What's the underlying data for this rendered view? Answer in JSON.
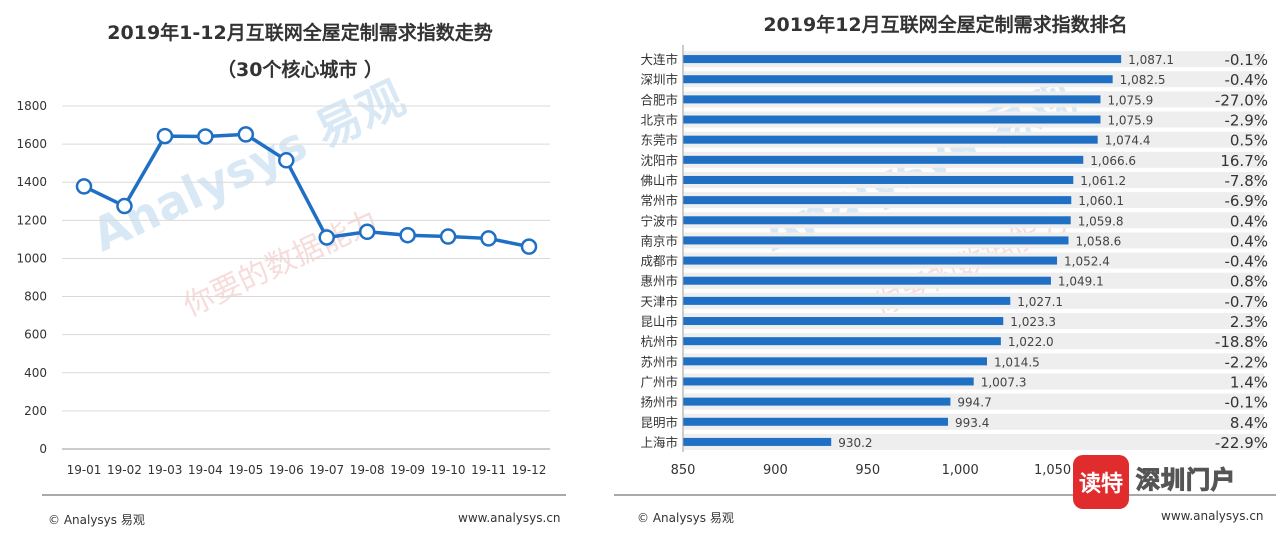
{
  "left": {
    "title_line1": "2019年1-12月互联网全屋定制需求指数走势",
    "title_line2": "（30个核心城市 ）",
    "footer_left": "© Analysys 易观",
    "footer_right": "www.analysys.cn",
    "watermark_main": "Analysys 易观",
    "watermark_sub": "你要的数据能力"
  },
  "right": {
    "title": "2019年12月互联网全屋定制需求指数排名",
    "footer_left": "© Analysys 易观",
    "footer_right": "www.analysys.cn",
    "watermark_main": "Analysys 易观",
    "watermark_sub": "你要的数据能力"
  },
  "sticker": {
    "badge": "读特",
    "text": "深圳门户"
  },
  "colors": {
    "series": "#1f6fc5",
    "grid": "#d9d9d9",
    "row_band": "#eeeeee",
    "watermark": "#d9e8f5"
  },
  "chart_data": [
    {
      "type": "line",
      "title": "2019年1-12月互联网全屋定制需求指数走势",
      "subtitle": "（30个核心城市 ）",
      "categories": [
        "19-01",
        "19-02",
        "19-03",
        "19-04",
        "19-05",
        "19-06",
        "19-07",
        "19-08",
        "19-09",
        "19-10",
        "19-11",
        "19-12"
      ],
      "values": [
        1378,
        1275,
        1642,
        1640,
        1651,
        1515,
        1110,
        1140,
        1122,
        1115,
        1105,
        1062
      ],
      "yticks": [
        "0",
        "200",
        "400",
        "600",
        "800",
        "1000",
        "1200",
        "1400",
        "1600",
        "1800"
      ],
      "ylim": [
        0,
        1800
      ],
      "grid": true,
      "legend": "none"
    },
    {
      "type": "bar",
      "orientation": "horizontal",
      "title": "2019年12月互联网全屋定制需求指数排名",
      "categories": [
        "大连市",
        "深圳市",
        "合肥市",
        "北京市",
        "东莞市",
        "沈阳市",
        "佛山市",
        "常州市",
        "宁波市",
        "南京市",
        "成都市",
        "惠州市",
        "天津市",
        "昆山市",
        "杭州市",
        "苏州市",
        "广州市",
        "扬州市",
        "昆明市",
        "上海市"
      ],
      "values": [
        1087.1,
        1082.5,
        1075.9,
        1075.9,
        1074.4,
        1066.6,
        1061.2,
        1060.1,
        1059.8,
        1058.6,
        1052.4,
        1049.1,
        1027.1,
        1023.3,
        1022.0,
        1014.5,
        1007.3,
        994.7,
        993.4,
        930.2
      ],
      "value_labels": [
        "1,087.1",
        "1,082.5",
        "1,075.9",
        "1,075.9",
        "1,074.4",
        "1,066.6",
        "1,061.2",
        "1,060.1",
        "1,059.8",
        "1,058.6",
        "1,052.4",
        "1,049.1",
        "1,027.1",
        "1,023.3",
        "1,022.0",
        "1,014.5",
        "1,007.3",
        "994.7",
        "993.4",
        "930.2"
      ],
      "changes": [
        "-0.1%",
        "-0.4%",
        "-27.0%",
        "-2.9%",
        "0.5%",
        "16.7%",
        "-7.8%",
        "-6.9%",
        "0.4%",
        "0.4%",
        "-0.4%",
        "0.8%",
        "-0.7%",
        "2.3%",
        "-18.8%",
        "-2.2%",
        "1.4%",
        "-0.1%",
        "8.4%",
        "-22.9%"
      ],
      "xticks": [
        "850",
        "900",
        "950",
        "1,000",
        "1,050"
      ],
      "xtick_values": [
        850,
        900,
        950,
        1000,
        1050
      ],
      "xlim": [
        850,
        1100
      ],
      "grid": false,
      "legend": "none"
    }
  ]
}
